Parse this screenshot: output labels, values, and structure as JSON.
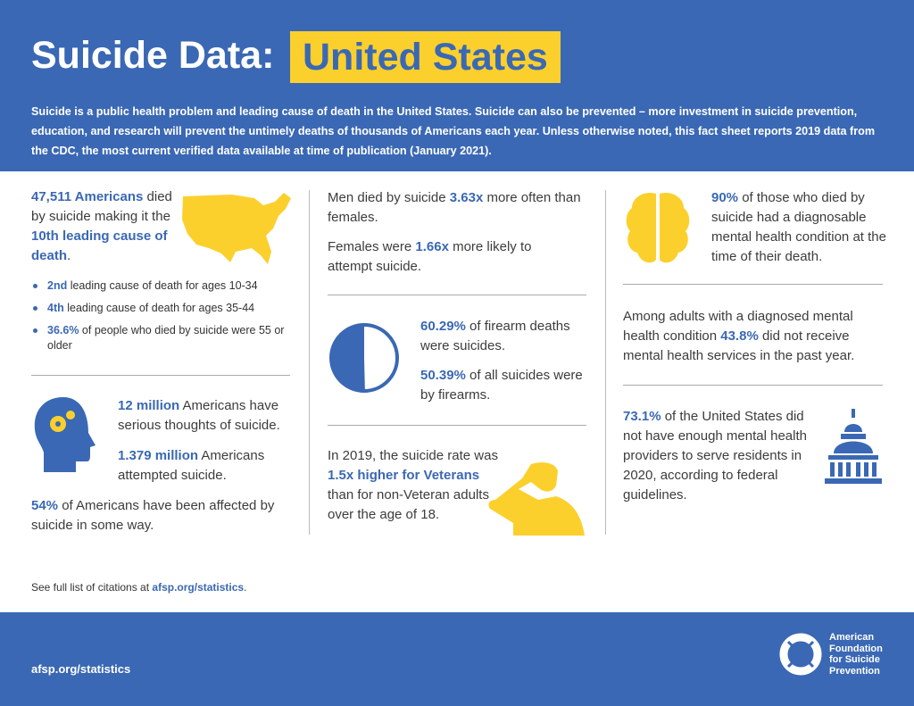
{
  "header": {
    "title": "Suicide Data:",
    "highlight": "United States",
    "intro": "Suicide is a public health problem and leading cause of death in the United States. Suicide can also be prevented – more investment in suicide prevention, education, and research will prevent the untimely deaths of thousands of Americans each year. Unless otherwise noted, this fact sheet reports 2019 data from the CDC, the most current verified data available at time of publication (January 2021)."
  },
  "col1": {
    "deaths_num": "47,511 Americans",
    "deaths_text": " died by suicide making it the ",
    "rank": "10th leading cause of death",
    "period": ".",
    "bullets": [
      {
        "b": "2nd",
        "t": " leading cause of death for ages 10-34"
      },
      {
        "b": "4th",
        "t": " leading cause of death for ages 35-44"
      },
      {
        "b": "36.6%",
        "t": " of people who died by suicide were 55 or older"
      }
    ],
    "thoughts_num": "12 million",
    "thoughts_text": " Americans have serious thoughts of suicide.",
    "attempt_num": "1.379 million",
    "attempt_text": " Americans attempted suicide.",
    "affected_num": "54%",
    "affected_text": " of Americans have been affected by suicide in some way."
  },
  "col2": {
    "men_a": "Men died by suicide ",
    "men_b": "3.63x",
    "men_c": " more often than females.",
    "fem_a": "Females were ",
    "fem_b": "1.66x",
    "fem_c": " more likely to attempt suicide.",
    "firearm1_num": "60.29%",
    "firearm1_text": " of firearm deaths were suicides.",
    "firearm2_num": "50.39%",
    "firearm2_text": " of all suicides were by firearms.",
    "firearm_share": 0.5039,
    "vet_a": "In 2019, the suicide rate was ",
    "vet_b": "1.5x higher for Veterans",
    "vet_c": " than for non-Veteran adults over the age of 18."
  },
  "col3": {
    "mh_num": "90%",
    "mh_text": " of those who died by suicide had a diagnosable mental health condition at the time of their death.",
    "svc_a": "Among adults with a diagnosed mental health condition ",
    "svc_b": "43.8%",
    "svc_c": " did not receive mental health services in the past year.",
    "prov_num": "73.1%",
    "prov_text": " of the United States did not have enough mental health providers to serve residents in 2020, according to federal guidelines."
  },
  "citation": {
    "text": "See full list of citations at ",
    "link": "afsp.org/statistics",
    "end": "."
  },
  "footer": {
    "url": "afsp.org/statistics",
    "logo_lines": [
      "American",
      "Foundation",
      "for Suicide",
      "Prevention"
    ]
  },
  "colors": {
    "blue": "#3a68b4",
    "yellow": "#fcd02c"
  }
}
